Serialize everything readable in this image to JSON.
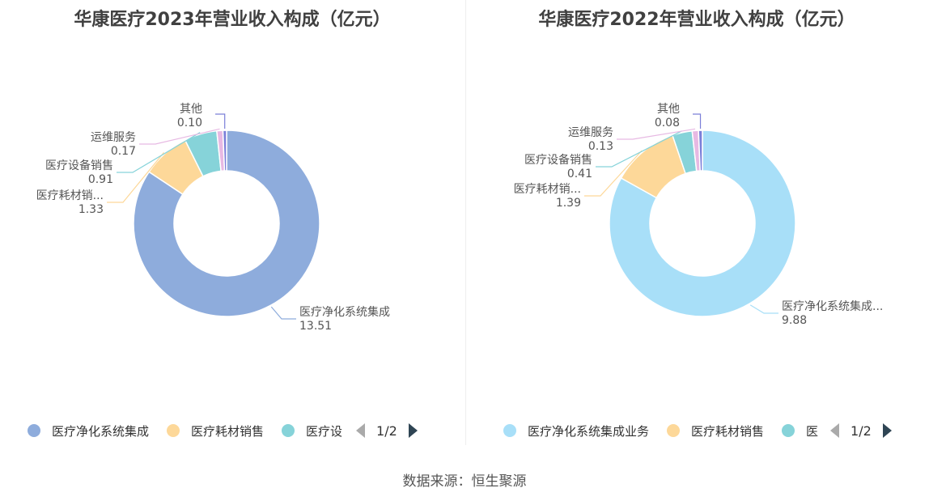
{
  "charts": [
    {
      "title": "华康医疗2023年营业收入构成（亿元）",
      "pager": "1/2",
      "legend_items": [
        "医疗净化系统集成",
        "医疗耗材销售",
        "医疗设"
      ]
    },
    {
      "title": "华康医疗2022年营业收入构成（亿元）",
      "pager": "1/2",
      "legend_items": [
        "医疗净化系统集成业务",
        "医疗耗材销售",
        "医"
      ]
    }
  ],
  "chart_data": [
    {
      "type": "pie",
      "title": "华康医疗2023年营业收入构成（亿元）",
      "categories": [
        "医疗净化系统集成",
        "医疗耗材销...",
        "医疗设备销售",
        "运维服务",
        "其他"
      ],
      "values": [
        13.51,
        1.33,
        0.91,
        0.17,
        0.1
      ],
      "colors": [
        "#8eacdc",
        "#fdd899",
        "#86d3d9",
        "#e7b9e3",
        "#7b7fd8"
      ],
      "legend": "bottom"
    },
    {
      "type": "pie",
      "title": "华康医疗2022年营业收入构成（亿元）",
      "categories": [
        "医疗净化系统集成...",
        "医疗耗材销...",
        "医疗设备销售",
        "运维服务",
        "其他"
      ],
      "values": [
        9.88,
        1.39,
        0.41,
        0.13,
        0.08
      ],
      "colors": [
        "#a8dff8",
        "#fdd899",
        "#86d3d9",
        "#e7b9e3",
        "#7b7fd8"
      ],
      "legend": "bottom"
    }
  ],
  "source_text": "数据来源：恒生聚源"
}
